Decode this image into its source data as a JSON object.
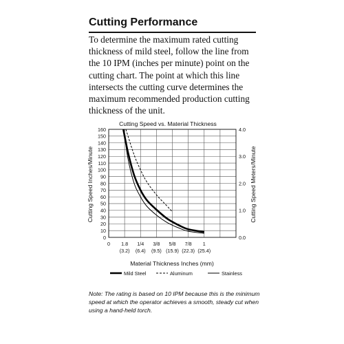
{
  "heading": "Cutting Performance",
  "intro": "To determine the maximum rated cutting thickness of mild steel, follow the line from the 10 IPM (inches per minute) point on the cutting chart. The point at which this line intersects the cutting curve determines the maximum recommended production cutting thickness of the unit.",
  "note": "Note: The rating is based on 10 IPM because this is the minimum speed at which the operator achieves a smooth, steady cut when using a hand-held torch.",
  "chart_data": {
    "type": "line",
    "title": "Cutting Speed vs. Material Thickness",
    "xlabel": "Material Thickness Inches (mm)",
    "ylabel": "Cutting Speed Inches/Minute",
    "y2label": "Cutting Speed Meters/Minute",
    "xlim": [
      0,
      1
    ],
    "ylim": [
      0,
      160
    ],
    "y2lim": [
      0,
      4.0
    ],
    "grid": true,
    "legend_position": "bottom",
    "x_ticks": [
      {
        "value": 0,
        "label": "0",
        "sub": ""
      },
      {
        "value": 0.125,
        "label": "1.8",
        "sub": "(3.2)"
      },
      {
        "value": 0.25,
        "label": "1/4",
        "sub": "(6.4)"
      },
      {
        "value": 0.375,
        "label": "3/8",
        "sub": "(9.5)"
      },
      {
        "value": 0.5,
        "label": "5/8",
        "sub": "(15.9)"
      },
      {
        "value": 0.625,
        "label": "7/8",
        "sub": "(22.3)"
      },
      {
        "value": 0.75,
        "label": "1",
        "sub": "(25.4)"
      }
    ],
    "x_grid_extra": [
      0.875
    ],
    "y_ticks": [
      0,
      10,
      20,
      30,
      40,
      50,
      60,
      70,
      80,
      90,
      100,
      110,
      120,
      130,
      140,
      150,
      160
    ],
    "y2_ticks": [
      {
        "value": 0.0,
        "label": "0.0"
      },
      {
        "value": 1.0,
        "label": "1.0"
      },
      {
        "value": 2.0,
        "label": "2.0"
      },
      {
        "value": 3.0,
        "label": "3.0"
      },
      {
        "value": 4.0,
        "label": "4.0"
      }
    ],
    "series": [
      {
        "name": "Mild Steel",
        "style": "thick",
        "x": [
          0.115,
          0.15,
          0.2,
          0.25,
          0.3,
          0.375,
          0.45,
          0.5,
          0.55,
          0.625,
          0.75
        ],
        "y": [
          160,
          127,
          92,
          70,
          55,
          41,
          29,
          23,
          18,
          12,
          8
        ]
      },
      {
        "name": "Aluminum",
        "style": "dashed",
        "x": [
          0.135,
          0.2,
          0.25,
          0.3,
          0.375,
          0.45,
          0.5
        ],
        "y": [
          160,
          122,
          100,
          82,
          63,
          48,
          38
        ]
      },
      {
        "name": "Stainless",
        "style": "thin",
        "x": [
          0.12,
          0.15,
          0.2,
          0.25,
          0.3,
          0.375,
          0.45,
          0.5,
          0.55,
          0.625,
          0.75
        ],
        "y": [
          160,
          118,
          80,
          60,
          46,
          33,
          23,
          18,
          14,
          9,
          6
        ]
      }
    ]
  }
}
